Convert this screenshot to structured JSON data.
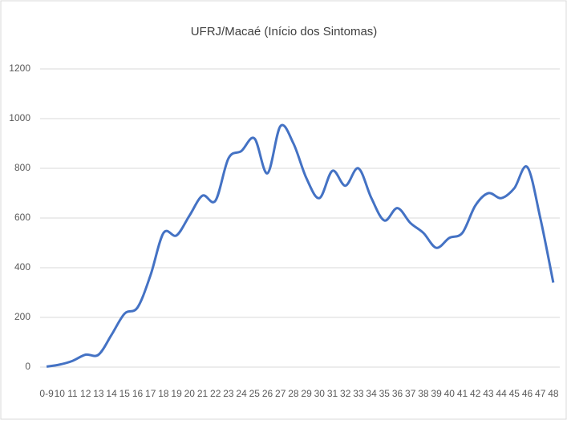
{
  "chart_data": {
    "type": "line",
    "title": "UFRJ/Macaé (Início dos Sintomas)",
    "categories": [
      "0-9",
      "10",
      "11",
      "12",
      "13",
      "14",
      "15",
      "16",
      "17",
      "18",
      "19",
      "20",
      "21",
      "22",
      "23",
      "24",
      "25",
      "26",
      "27",
      "28",
      "29",
      "30",
      "31",
      "32",
      "33",
      "34",
      "35",
      "36",
      "37",
      "38",
      "39",
      "40",
      "41",
      "42",
      "43",
      "44",
      "45",
      "46",
      "47",
      "48"
    ],
    "series": [
      {
        "name": "UFRJ/Macaé",
        "color": "#4472c4",
        "values": [
          2,
          10,
          25,
          50,
          50,
          130,
          215,
          240,
          370,
          540,
          530,
          610,
          690,
          670,
          840,
          870,
          920,
          780,
          970,
          900,
          760,
          680,
          790,
          730,
          800,
          680,
          590,
          640,
          580,
          540,
          480,
          520,
          540,
          650,
          700,
          680,
          720,
          805,
          600,
          340
        ]
      }
    ],
    "ylim": [
      0,
      1200
    ],
    "yticks": [
      0,
      200,
      400,
      600,
      800,
      1000,
      1200
    ],
    "grid": true,
    "legend": false
  }
}
